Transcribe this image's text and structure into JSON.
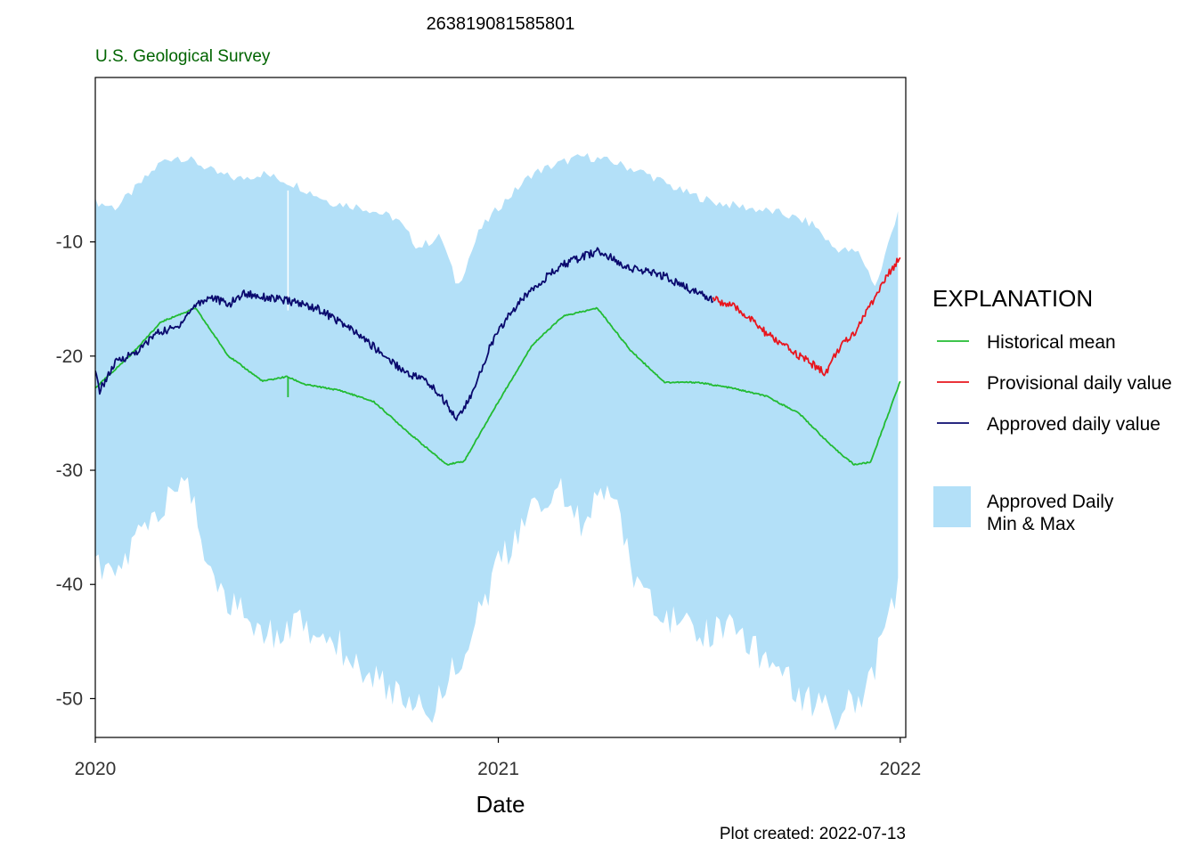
{
  "chart_data": {
    "type": "line",
    "title": "263819081585801",
    "agency": "U.S. Geological Survey",
    "xlabel": "Date",
    "ylabel": "",
    "caption": "Plot created: 2022-07-13",
    "x_type": "date",
    "xlim": [
      "2020-01-01",
      "2022-01-06"
    ],
    "ylim": [
      -53.4,
      4.4
    ],
    "x_ticks": [
      {
        "date": "2020-01-01",
        "label": "2020"
      },
      {
        "date": "2021-01-01",
        "label": "2021"
      },
      {
        "date": "2022-01-01",
        "label": "2022"
      }
    ],
    "y_ticks": [
      -10,
      -20,
      -30,
      -40,
      -50
    ],
    "grid": false,
    "legend": {
      "title": "EXPLANATION",
      "position": "right",
      "entries": [
        {
          "label": "Historical mean",
          "color": "#22bb33",
          "kind": "line"
        },
        {
          "label": "Provisional daily value",
          "color": "#e8161e",
          "kind": "line"
        },
        {
          "label": "Approved daily value",
          "color": "#0a0a6e",
          "kind": "line"
        },
        {
          "label": "Approved Daily\nMin & Max",
          "color": "#b3e0f8",
          "kind": "area"
        }
      ]
    },
    "colors": {
      "band": "#b3e0f8",
      "historical_mean": "#22bb33",
      "provisional": "#e8161e",
      "approved": "#0a0a6e",
      "agency": "#006400"
    },
    "series": [
      {
        "name": "Approved Daily Min & Max",
        "kind": "band",
        "upper": [
          {
            "x": "2020-01-01",
            "y": -6.5
          },
          {
            "x": "2020-01-20",
            "y": -7.0
          },
          {
            "x": "2020-02-10",
            "y": -5.0
          },
          {
            "x": "2020-03-01",
            "y": -3.0
          },
          {
            "x": "2020-03-15",
            "y": -2.5
          },
          {
            "x": "2020-04-01",
            "y": -3.0
          },
          {
            "x": "2020-04-20",
            "y": -4.0
          },
          {
            "x": "2020-05-10",
            "y": -4.5
          },
          {
            "x": "2020-06-01",
            "y": -4.0
          },
          {
            "x": "2020-07-01",
            "y": -5.0
          },
          {
            "x": "2020-08-01",
            "y": -6.5
          },
          {
            "x": "2020-09-01",
            "y": -7.0
          },
          {
            "x": "2020-10-01",
            "y": -8.0
          },
          {
            "x": "2020-10-20",
            "y": -10.5
          },
          {
            "x": "2020-11-10",
            "y": -9.5
          },
          {
            "x": "2020-11-25",
            "y": -14.0
          },
          {
            "x": "2020-12-15",
            "y": -9.0
          },
          {
            "x": "2021-01-01",
            "y": -7.0
          },
          {
            "x": "2021-02-01",
            "y": -4.0
          },
          {
            "x": "2021-03-01",
            "y": -3.0
          },
          {
            "x": "2021-03-20",
            "y": -2.5
          },
          {
            "x": "2021-04-15",
            "y": -3.0
          },
          {
            "x": "2021-05-15",
            "y": -4.0
          },
          {
            "x": "2021-06-15",
            "y": -5.5
          },
          {
            "x": "2021-07-15",
            "y": -6.5
          },
          {
            "x": "2021-08-15",
            "y": -7.0
          },
          {
            "x": "2021-09-15",
            "y": -7.5
          },
          {
            "x": "2021-10-15",
            "y": -8.5
          },
          {
            "x": "2021-11-01",
            "y": -10.5
          },
          {
            "x": "2021-11-25",
            "y": -11.0
          },
          {
            "x": "2021-12-10",
            "y": -14.0
          },
          {
            "x": "2022-01-01",
            "y": -6.5
          }
        ],
        "lower": [
          {
            "x": "2020-01-01",
            "y": -37.0
          },
          {
            "x": "2020-01-20",
            "y": -38.0
          },
          {
            "x": "2020-02-10",
            "y": -34.0
          },
          {
            "x": "2020-03-01",
            "y": -32.0
          },
          {
            "x": "2020-03-25",
            "y": -29.0
          },
          {
            "x": "2020-04-10",
            "y": -36.0
          },
          {
            "x": "2020-05-01",
            "y": -40.0
          },
          {
            "x": "2020-06-01",
            "y": -43.0
          },
          {
            "x": "2020-07-01",
            "y": -42.0
          },
          {
            "x": "2020-08-01",
            "y": -43.0
          },
          {
            "x": "2020-09-01",
            "y": -46.0
          },
          {
            "x": "2020-10-01",
            "y": -48.0
          },
          {
            "x": "2020-11-01",
            "y": -49.5
          },
          {
            "x": "2020-12-01",
            "y": -44.0
          },
          {
            "x": "2021-01-01",
            "y": -37.0
          },
          {
            "x": "2021-02-01",
            "y": -32.0
          },
          {
            "x": "2021-03-01",
            "y": -30.0
          },
          {
            "x": "2021-03-20",
            "y": -34.0
          },
          {
            "x": "2021-04-10",
            "y": -29.0
          },
          {
            "x": "2021-05-01",
            "y": -37.0
          },
          {
            "x": "2021-06-01",
            "y": -41.0
          },
          {
            "x": "2021-07-01",
            "y": -43.0
          },
          {
            "x": "2021-08-01",
            "y": -42.0
          },
          {
            "x": "2021-09-01",
            "y": -45.0
          },
          {
            "x": "2021-10-01",
            "y": -48.0
          },
          {
            "x": "2021-11-01",
            "y": -50.0
          },
          {
            "x": "2021-12-01",
            "y": -48.0
          },
          {
            "x": "2022-01-01",
            "y": -38.0
          }
        ],
        "spike": {
          "x": "2020-06-24",
          "upper": -5.5,
          "lower": -16.0
        }
      },
      {
        "name": "Historical mean",
        "kind": "line",
        "points": [
          {
            "x": "2020-01-01",
            "y": -22.8
          },
          {
            "x": "2020-02-01",
            "y": -20.0
          },
          {
            "x": "2020-03-01",
            "y": -17.0
          },
          {
            "x": "2020-04-01",
            "y": -15.8
          },
          {
            "x": "2020-05-01",
            "y": -20.0
          },
          {
            "x": "2020-06-01",
            "y": -22.2
          },
          {
            "x": "2020-06-23",
            "y": -21.8
          },
          {
            "x": "2020-07-10",
            "y": -22.5
          },
          {
            "x": "2020-08-10",
            "y": -23.0
          },
          {
            "x": "2020-09-10",
            "y": -24.0
          },
          {
            "x": "2020-10-15",
            "y": -27.0
          },
          {
            "x": "2020-11-15",
            "y": -29.5
          },
          {
            "x": "2020-12-01",
            "y": -29.2
          },
          {
            "x": "2021-01-01",
            "y": -24.0
          },
          {
            "x": "2021-02-01",
            "y": -19.0
          },
          {
            "x": "2021-03-01",
            "y": -16.5
          },
          {
            "x": "2021-04-01",
            "y": -15.8
          },
          {
            "x": "2021-05-01",
            "y": -19.5
          },
          {
            "x": "2021-06-01",
            "y": -22.3
          },
          {
            "x": "2021-07-01",
            "y": -22.3
          },
          {
            "x": "2021-08-01",
            "y": -22.8
          },
          {
            "x": "2021-09-01",
            "y": -23.5
          },
          {
            "x": "2021-10-01",
            "y": -25.0
          },
          {
            "x": "2021-11-01",
            "y": -28.0
          },
          {
            "x": "2021-11-20",
            "y": -29.5
          },
          {
            "x": "2021-12-05",
            "y": -29.3
          },
          {
            "x": "2022-01-01",
            "y": -22.2
          }
        ]
      },
      {
        "name": "Approved daily value",
        "kind": "line",
        "points": [
          {
            "x": "2020-01-01",
            "y": -21.5
          },
          {
            "x": "2020-01-05",
            "y": -23.0
          },
          {
            "x": "2020-01-20",
            "y": -20.5
          },
          {
            "x": "2020-02-10",
            "y": -19.5
          },
          {
            "x": "2020-02-25",
            "y": -18.0
          },
          {
            "x": "2020-03-15",
            "y": -17.5
          },
          {
            "x": "2020-04-01",
            "y": -15.5
          },
          {
            "x": "2020-04-15",
            "y": -14.8
          },
          {
            "x": "2020-05-01",
            "y": -15.5
          },
          {
            "x": "2020-05-15",
            "y": -14.5
          },
          {
            "x": "2020-06-01",
            "y": -14.8
          },
          {
            "x": "2020-07-01",
            "y": -15.3
          },
          {
            "x": "2020-07-20",
            "y": -15.8
          },
          {
            "x": "2020-08-10",
            "y": -17.0
          },
          {
            "x": "2020-09-01",
            "y": -18.5
          },
          {
            "x": "2020-09-20",
            "y": -20.0
          },
          {
            "x": "2020-10-10",
            "y": -21.5
          },
          {
            "x": "2020-10-25",
            "y": -22.0
          },
          {
            "x": "2020-11-10",
            "y": -23.5
          },
          {
            "x": "2020-11-25",
            "y": -25.5
          },
          {
            "x": "2020-12-10",
            "y": -23.0
          },
          {
            "x": "2020-12-25",
            "y": -19.0
          },
          {
            "x": "2021-01-10",
            "y": -16.5
          },
          {
            "x": "2021-02-01",
            "y": -14.0
          },
          {
            "x": "2021-03-01",
            "y": -12.0
          },
          {
            "x": "2021-04-01",
            "y": -10.8
          },
          {
            "x": "2021-05-01",
            "y": -12.3
          },
          {
            "x": "2021-06-01",
            "y": -13.0
          },
          {
            "x": "2021-06-20",
            "y": -14.0
          },
          {
            "x": "2021-07-15",
            "y": -15.0
          }
        ]
      },
      {
        "name": "Provisional daily value",
        "kind": "line",
        "points": [
          {
            "x": "2021-07-15",
            "y": -15.0
          },
          {
            "x": "2021-08-01",
            "y": -15.6
          },
          {
            "x": "2021-08-15",
            "y": -16.5
          },
          {
            "x": "2021-09-01",
            "y": -18.0
          },
          {
            "x": "2021-09-20",
            "y": -19.3
          },
          {
            "x": "2021-10-10",
            "y": -20.5
          },
          {
            "x": "2021-10-25",
            "y": -21.5
          },
          {
            "x": "2021-11-05",
            "y": -19.5
          },
          {
            "x": "2021-11-20",
            "y": -18.0
          },
          {
            "x": "2021-12-05",
            "y": -15.5
          },
          {
            "x": "2021-12-20",
            "y": -13.0
          },
          {
            "x": "2022-01-01",
            "y": -11.3
          }
        ]
      }
    ]
  }
}
